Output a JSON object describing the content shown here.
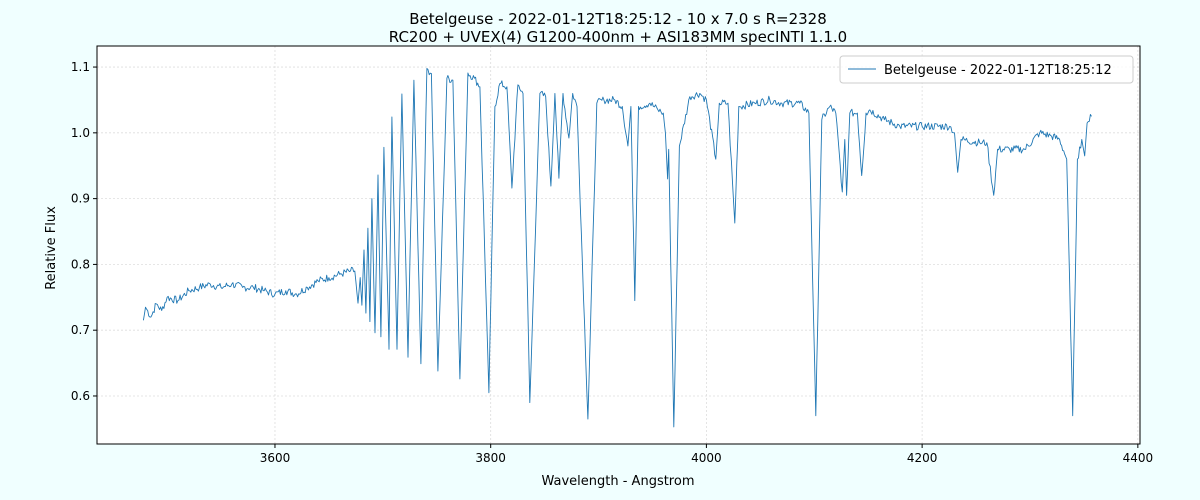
{
  "chart_data": {
    "type": "line",
    "title": [
      "Betelgeuse - 2022-01-12T18:25:12 - 10 x 7.0 s  R=2328",
      "RC200 + UVEX(4) G1200-400nm + ASI183MM   specINTI 1.1.0"
    ],
    "xlabel": "Wavelength - Angstrom",
    "ylabel": "Relative Flux",
    "xlim": [
      3435,
      4402
    ],
    "ylim": [
      0.527,
      1.132
    ],
    "xticks": [
      3600,
      3800,
      4000,
      4200,
      4400
    ],
    "yticks": [
      0.6,
      0.7,
      0.8,
      0.9,
      1.0,
      1.1
    ],
    "xtick_labels": [
      "3600",
      "3800",
      "4000",
      "4200",
      "4400"
    ],
    "ytick_labels": [
      "0.6",
      "0.7",
      "0.8",
      "0.9",
      "1.0",
      "1.1"
    ],
    "grid": true,
    "legend_position": "top-right",
    "series": [
      {
        "name": "Betelgeuse - 2022-01-12T18:25:12",
        "color": "#1f77b4",
        "points": [
          [
            3478,
            0.715
          ],
          [
            3480,
            0.735
          ],
          [
            3485,
            0.72
          ],
          [
            3490,
            0.74
          ],
          [
            3495,
            0.73
          ],
          [
            3500,
            0.75
          ],
          [
            3510,
            0.745
          ],
          [
            3520,
            0.76
          ],
          [
            3530,
            0.765
          ],
          [
            3540,
            0.77
          ],
          [
            3550,
            0.765
          ],
          [
            3560,
            0.77
          ],
          [
            3570,
            0.765
          ],
          [
            3580,
            0.765
          ],
          [
            3590,
            0.76
          ],
          [
            3600,
            0.755
          ],
          [
            3610,
            0.76
          ],
          [
            3620,
            0.755
          ],
          [
            3630,
            0.765
          ],
          [
            3640,
            0.775
          ],
          [
            3650,
            0.78
          ],
          [
            3660,
            0.785
          ],
          [
            3670,
            0.79
          ],
          [
            3674,
            0.79
          ],
          [
            3677,
            0.741
          ],
          [
            3679,
            0.78
          ],
          [
            3680.6,
            0.738
          ],
          [
            3682.5,
            0.822
          ],
          [
            3684.3,
            0.726
          ],
          [
            3686.2,
            0.855
          ],
          [
            3688.0,
            0.713
          ],
          [
            3689.9,
            0.9
          ],
          [
            3692.7,
            0.696
          ],
          [
            3695.5,
            0.936
          ],
          [
            3698.2,
            0.69
          ],
          [
            3701.0,
            0.978
          ],
          [
            3705.7,
            0.671
          ],
          [
            3708.4,
            1.024
          ],
          [
            3713.1,
            0.671
          ],
          [
            3717.7,
            1.059
          ],
          [
            3723.3,
            0.659
          ],
          [
            3728.8,
            1.08
          ],
          [
            3735.3,
            0.649
          ],
          [
            3740.9,
            1.098
          ],
          [
            3745,
            1.09
          ],
          [
            3751.1,
            0.638
          ],
          [
            3759.4,
            1.083
          ],
          [
            3765,
            1.08
          ],
          [
            3771.5,
            0.626
          ],
          [
            3778.9,
            1.091
          ],
          [
            3785,
            1.083
          ],
          [
            3790,
            1.07
          ],
          [
            3798.3,
            0.605
          ],
          [
            3803.9,
            1.04
          ],
          [
            3808.5,
            1.075
          ],
          [
            3815,
            1.07
          ],
          [
            3819.7,
            0.916
          ],
          [
            3825.2,
            1.073
          ],
          [
            3830,
            1.06
          ],
          [
            3836.3,
            0.59
          ],
          [
            3845.6,
            1.06
          ],
          [
            3851,
            1.055
          ],
          [
            3855.8,
            0.919
          ],
          [
            3859.5,
            1.06
          ],
          [
            3863.2,
            0.931
          ],
          [
            3867,
            1.06
          ],
          [
            3872.5,
            0.992
          ],
          [
            3876,
            1.06
          ],
          [
            3880,
            1.04
          ],
          [
            3890.1,
            0.565
          ],
          [
            3898.4,
            1.045
          ],
          [
            3905,
            1.05
          ],
          [
            3915.1,
            1.05
          ],
          [
            3922,
            1.04
          ],
          [
            3927.2,
            0.98
          ],
          [
            3930,
            1.04
          ],
          [
            3933.6,
            0.745
          ],
          [
            3937,
            1.04
          ],
          [
            3947.6,
            1.045
          ],
          [
            3955,
            1.035
          ],
          [
            3960,
            1.03
          ],
          [
            3962,
            1.0
          ],
          [
            3964,
            0.93
          ],
          [
            3965,
            0.975
          ],
          [
            3969.8,
            0.553
          ],
          [
            3975,
            0.98
          ],
          [
            3984.6,
            1.055
          ],
          [
            3993.9,
            1.06
          ],
          [
            4000,
            1.05
          ],
          [
            4008.7,
            0.96
          ],
          [
            4012,
            1.045
          ],
          [
            4020,
            1.045
          ],
          [
            4026.3,
            0.863
          ],
          [
            4030,
            1.04
          ],
          [
            4045,
            1.045
          ],
          [
            4058.8,
            1.05
          ],
          [
            4070,
            1.045
          ],
          [
            4086.6,
            1.045
          ],
          [
            4095,
            1.03
          ],
          [
            4101.4,
            0.57
          ],
          [
            4107,
            1.02
          ],
          [
            4114.4,
            1.04
          ],
          [
            4120,
            1.03
          ],
          [
            4126,
            0.91
          ],
          [
            4128.3,
            0.99
          ],
          [
            4130,
            0.905
          ],
          [
            4132.9,
            1.03
          ],
          [
            4140,
            1.03
          ],
          [
            4144,
            0.935
          ],
          [
            4148,
            1.03
          ],
          [
            4151.5,
            1.035
          ],
          [
            4165,
            1.02
          ],
          [
            4179.3,
            1.01
          ],
          [
            4200,
            1.01
          ],
          [
            4225.6,
            1.01
          ],
          [
            4230,
            1.0
          ],
          [
            4233,
            0.94
          ],
          [
            4236,
            0.99
          ],
          [
            4253.4,
            0.985
          ],
          [
            4260,
            0.985
          ],
          [
            4266.4,
            0.905
          ],
          [
            4270,
            0.975
          ],
          [
            4281.2,
            0.975
          ],
          [
            4295,
            0.975
          ],
          [
            4309,
            1.0
          ],
          [
            4320,
            0.995
          ],
          [
            4327.5,
            0.99
          ],
          [
            4334,
            0.96
          ],
          [
            4339.6,
            0.57
          ],
          [
            4344,
            0.96
          ],
          [
            4348,
            0.99
          ],
          [
            4350.7,
            0.965
          ],
          [
            4353,
            1.015
          ],
          [
            4357,
            1.025
          ]
        ]
      }
    ]
  }
}
